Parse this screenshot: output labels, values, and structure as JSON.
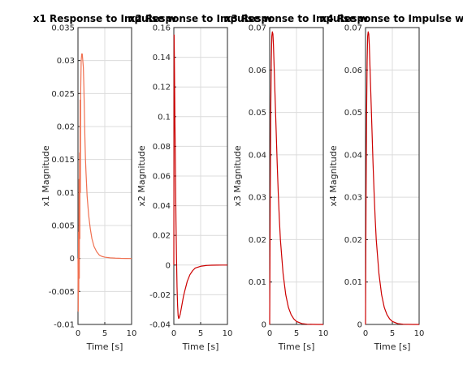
{
  "chart_data": [
    {
      "type": "line",
      "title": "x1 Response to Impulse w",
      "xlabel": "Time [s]",
      "ylabel": "x1 Magnitude",
      "xlim": [
        0,
        10
      ],
      "ylim": [
        -0.01,
        0.035
      ],
      "xticks": [
        "0",
        "5",
        "10"
      ],
      "yticks": [
        "-0.01",
        "-0.005",
        "0",
        "0.005",
        "0.01",
        "0.015",
        "0.02",
        "0.025",
        "0.03",
        "0.035"
      ],
      "grid": true,
      "color": "#f07050",
      "series": [
        {
          "x": [
            0,
            0.05,
            0.1,
            0.15,
            0.2,
            0.25,
            0.3,
            0.35,
            0.4,
            0.45,
            0.5,
            0.6,
            0.7,
            0.8,
            0.9,
            1.0,
            1.1,
            1.2,
            1.3,
            1.4,
            1.5,
            1.7,
            2.0,
            2.3,
            2.6,
            3.0,
            3.5,
            4.0,
            4.5,
            5.0,
            6.0,
            7.0,
            8.0,
            9.0,
            10.0
          ],
          "y": [
            0,
            -0.008,
            0.004,
            -0.005,
            0.012,
            -0.003,
            0.016,
            0.003,
            0.024,
            0.01,
            0.025,
            0.03,
            0.031,
            0.031,
            0.03,
            0.029,
            0.026,
            0.022,
            0.018,
            0.015,
            0.013,
            0.0095,
            0.0065,
            0.0045,
            0.003,
            0.0018,
            0.001,
            0.0005,
            0.0003,
            0.0002,
            0.0001,
            5e-05,
            2e-05,
            1e-05,
            0
          ]
        }
      ]
    },
    {
      "type": "line",
      "title": "x2 Response to Impulse w",
      "xlabel": "Time [s]",
      "ylabel": "x2 Magnitude",
      "xlim": [
        0,
        10
      ],
      "ylim": [
        -0.04,
        0.16
      ],
      "xticks": [
        "0",
        "5",
        "10"
      ],
      "yticks": [
        "-0.04",
        "-0.02",
        "0",
        "0.02",
        "0.04",
        "0.06",
        "0.08",
        "0.1",
        "0.12",
        "0.14",
        "0.16"
      ],
      "grid": true,
      "color": "#cc0000",
      "series": [
        {
          "x": [
            0,
            0.05,
            0.1,
            0.15,
            0.2,
            0.3,
            0.4,
            0.5,
            0.6,
            0.7,
            0.8,
            0.9,
            1.0,
            1.2,
            1.5,
            1.8,
            2.0,
            2.5,
            3.0,
            3.5,
            4.0,
            5.0,
            6.0,
            7.0,
            8.0,
            9.0,
            10.0
          ],
          "y": [
            0,
            0.155,
            0.14,
            0.12,
            0.1,
            0.065,
            0.03,
            0.005,
            -0.015,
            -0.027,
            -0.034,
            -0.036,
            -0.0355,
            -0.033,
            -0.027,
            -0.021,
            -0.018,
            -0.011,
            -0.0065,
            -0.0038,
            -0.002,
            -0.0008,
            -0.0003,
            -0.0001,
            -5e-05,
            0,
            0
          ]
        }
      ]
    },
    {
      "type": "line",
      "title": "x3 Response to Impulse w",
      "xlabel": "Time [s]",
      "ylabel": "x3 Magnitude",
      "xlim": [
        0,
        10
      ],
      "ylim": [
        0,
        0.07
      ],
      "xticks": [
        "0",
        "5",
        "10"
      ],
      "yticks": [
        "0",
        "0.01",
        "0.02",
        "0.03",
        "0.04",
        "0.05",
        "0.06",
        "0.07"
      ],
      "grid": true,
      "color": "#cc0000",
      "series": [
        {
          "x": [
            0,
            0.05,
            0.1,
            0.2,
            0.3,
            0.4,
            0.5,
            0.6,
            0.7,
            0.8,
            0.9,
            1.0,
            1.2,
            1.4,
            1.6,
            1.8,
            2.0,
            2.5,
            3.0,
            3.5,
            4.0,
            4.5,
            5.0,
            6.0,
            7.0,
            8.0,
            9.0,
            10.0
          ],
          "y": [
            0,
            0.015,
            0.03,
            0.05,
            0.062,
            0.068,
            0.069,
            0.0685,
            0.066,
            0.062,
            0.058,
            0.054,
            0.046,
            0.038,
            0.031,
            0.025,
            0.02,
            0.012,
            0.007,
            0.004,
            0.0023,
            0.0013,
            0.0007,
            0.0002,
            6e-05,
            2e-05,
            0,
            0
          ]
        }
      ]
    },
    {
      "type": "line",
      "title": "x4 Response to Impulse w",
      "xlabel": "Time [s]",
      "ylabel": "x4 Magnitude",
      "xlim": [
        0,
        10
      ],
      "ylim": [
        0,
        0.07
      ],
      "xticks": [
        "0",
        "5",
        "10"
      ],
      "yticks": [
        "0",
        "0.01",
        "0.02",
        "0.03",
        "0.04",
        "0.05",
        "0.06",
        "0.07"
      ],
      "grid": true,
      "color": "#cc0000",
      "series": [
        {
          "x": [
            0,
            0.05,
            0.1,
            0.2,
            0.3,
            0.4,
            0.5,
            0.6,
            0.7,
            0.8,
            0.9,
            1.0,
            1.2,
            1.4,
            1.6,
            1.8,
            2.0,
            2.5,
            3.0,
            3.5,
            4.0,
            4.5,
            5.0,
            6.0,
            7.0,
            8.0,
            9.0,
            10.0
          ],
          "y": [
            0,
            0.015,
            0.03,
            0.05,
            0.062,
            0.068,
            0.069,
            0.0685,
            0.066,
            0.062,
            0.058,
            0.054,
            0.046,
            0.038,
            0.031,
            0.025,
            0.02,
            0.012,
            0.007,
            0.004,
            0.0023,
            0.0013,
            0.0007,
            0.0002,
            6e-05,
            2e-05,
            0,
            0
          ]
        }
      ]
    }
  ]
}
